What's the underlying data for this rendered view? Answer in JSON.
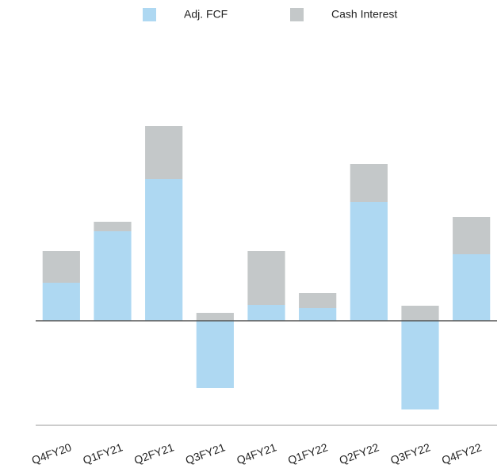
{
  "chart_data": {
    "type": "stacked_bar",
    "categories": [
      "Q4FY20",
      "Q1FY21",
      "Q2FY21",
      "Q3FY21",
      "Q4FY21",
      "Q1FY22",
      "Q2FY22",
      "Q3FY22",
      "Q4FY22"
    ],
    "series": [
      {
        "name": "Adj. FCF",
        "color": "#aed8f2",
        "values": [
          48,
          113,
          179,
          -85,
          20,
          16,
          150,
          -112,
          84
        ]
      },
      {
        "name": "Cash Interest",
        "color": "#c4c8c9",
        "values": [
          40,
          12,
          67,
          10,
          68,
          19,
          48,
          19,
          47
        ]
      }
    ],
    "ylim": [
      -132,
      345
    ],
    "legend": "top"
  }
}
